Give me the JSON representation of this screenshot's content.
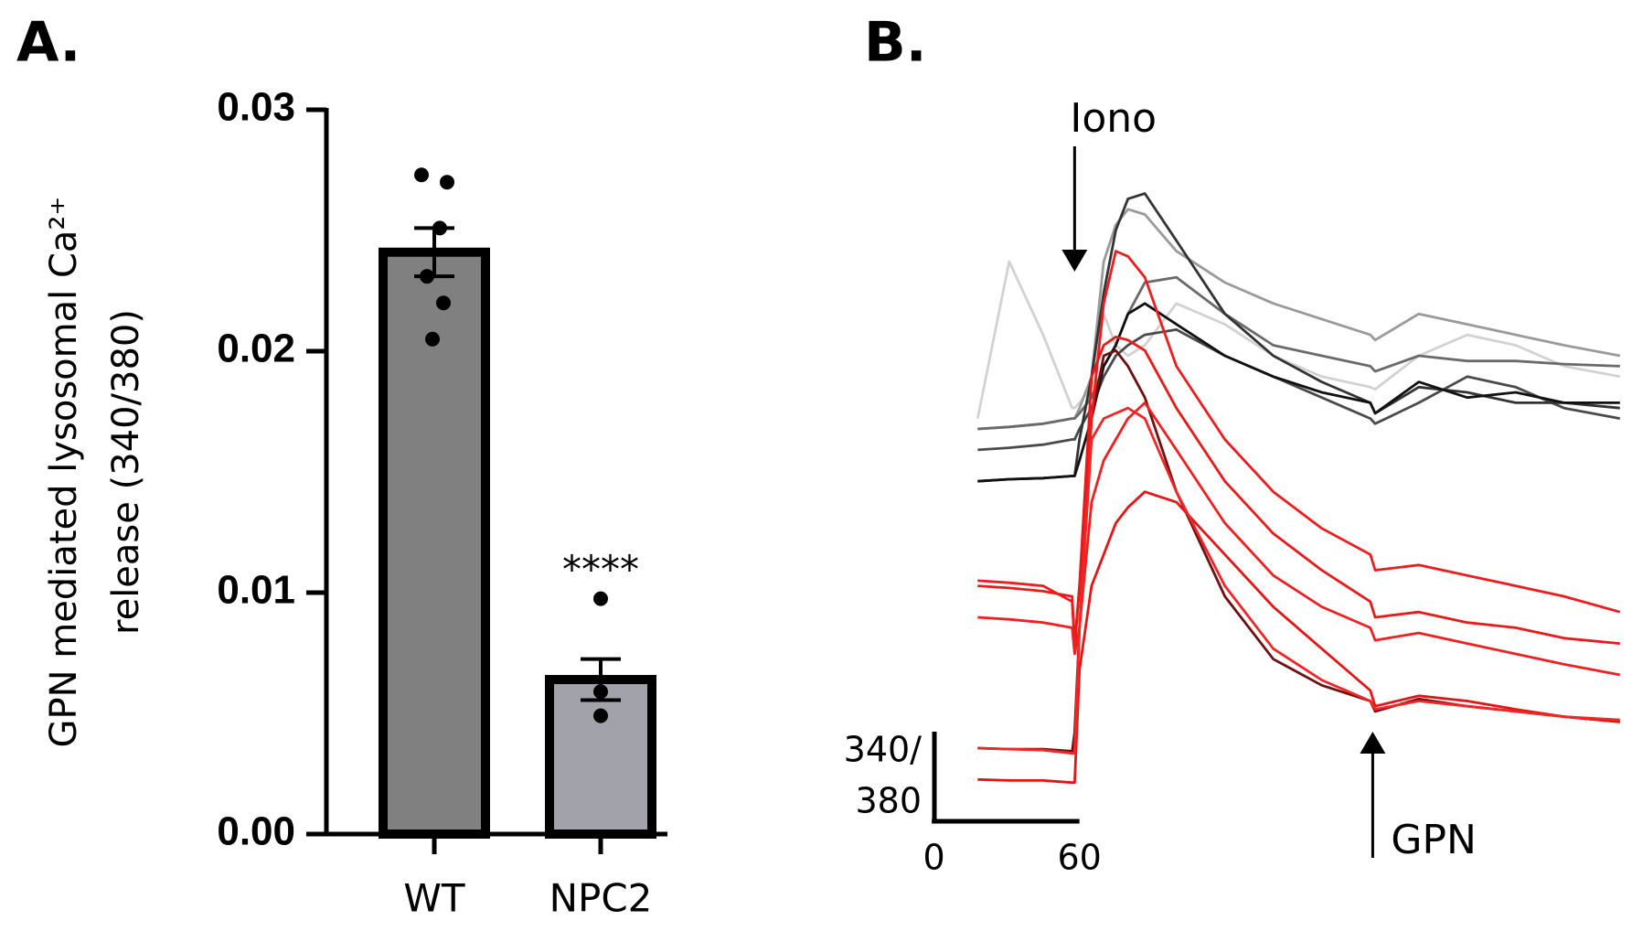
{
  "chart_data": [
    {
      "type": "bar",
      "panel_label": "A.",
      "ylabel": [
        "GPN mediated lysosomal Ca²⁺",
        "release (340/380)"
      ],
      "categories": [
        "WT",
        "NPC2"
      ],
      "values": [
        0.0241,
        0.0064
      ],
      "errors": [
        0.001,
        0.00085
      ],
      "colors": [
        "#808080",
        "#a2a2aa"
      ],
      "points": [
        [
          0.0273,
          0.027,
          0.0251,
          0.0231,
          0.022,
          0.0205
        ],
        [
          0.00975,
          0.0059,
          0.0049
        ]
      ],
      "annotations": [
        null,
        "****"
      ],
      "ylim": [
        0,
        0.03
      ],
      "yticks": [
        {
          "value": 0,
          "label": "0.00"
        },
        0.01,
        0.02,
        0.03
      ]
    },
    {
      "type": "line",
      "panel_label": "B.",
      "x": [
        18,
        31,
        45,
        57,
        58,
        60,
        65,
        70,
        75,
        80,
        87,
        100,
        120,
        140,
        160,
        180,
        182,
        200,
        220,
        240,
        260,
        283
      ],
      "xlim": [
        0,
        283
      ],
      "ylim": [
        0,
        7
      ],
      "xticks": [
        0,
        60
      ],
      "scalebar_label": [
        "340/",
        "380"
      ],
      "annotations": [
        {
          "text": "Iono",
          "x": 58,
          "direction": "down"
        },
        {
          "text": "GPN",
          "x": 181,
          "direction": "up"
        }
      ],
      "series": [
        {
          "color": "#d2d2d2",
          "values": [
            4,
            5.5,
            4.8,
            4.1,
            4.1,
            4.15,
            4.3,
            5,
            4.7,
            4.6,
            4.7,
            5.1,
            4.9,
            4.6,
            4.4,
            4.3,
            4.28,
            4.6,
            4.8,
            4.7,
            4.5,
            4.4
          ]
        },
        {
          "color": "#9a9a9a",
          "values": [
            3.9,
            3.92,
            3.95,
            4,
            4,
            4.1,
            4.4,
            5.5,
            5.85,
            6,
            5.95,
            5.6,
            5.3,
            5.1,
            4.95,
            4.8,
            4.75,
            5,
            4.9,
            4.8,
            4.7,
            4.6
          ]
        },
        {
          "color": "#6a6a6a",
          "values": [
            3.9,
            3.92,
            3.95,
            4,
            4,
            4.05,
            4.2,
            4.5,
            4.7,
            5,
            5.3,
            5.35,
            5,
            4.7,
            4.6,
            4.5,
            4.45,
            4.6,
            4.55,
            4.55,
            4.52,
            4.5
          ]
        },
        {
          "color": "#4a4a4a",
          "values": [
            3.7,
            3.72,
            3.75,
            3.8,
            3.8,
            3.9,
            4.1,
            4.4,
            4.6,
            4.7,
            4.8,
            4.85,
            4.6,
            4.4,
            4.2,
            4,
            3.95,
            4.15,
            4.4,
            4.3,
            4.1,
            4
          ]
        },
        {
          "color": "#333333",
          "values": [
            3.4,
            3.42,
            3.43,
            3.45,
            3.45,
            3.8,
            4.4,
            5.2,
            5.8,
            6.1,
            6.15,
            5.7,
            5,
            4.6,
            4.35,
            4.15,
            4.05,
            4.3,
            4.25,
            4.15,
            4.15,
            4.1
          ]
        },
        {
          "color": "#111111",
          "values": [
            3.4,
            3.42,
            3.43,
            3.45,
            3.45,
            3.6,
            4,
            4.5,
            4.7,
            5,
            5.1,
            4.9,
            4.6,
            4.4,
            4.25,
            4.15,
            4.05,
            4.35,
            4.2,
            4.25,
            4.15,
            4.15
          ]
        },
        {
          "color": "#6e1010",
          "values": [
            0.85,
            0.84,
            0.84,
            0.82,
            1,
            2,
            4,
            4.6,
            4.65,
            4.5,
            4.2,
            3.3,
            2.3,
            1.7,
            1.45,
            1.3,
            1.2,
            1.32,
            1.25,
            1.2,
            1.15,
            1.1
          ]
        },
        {
          "color": "#ee1c1c",
          "values": [
            2.45,
            2.43,
            2.4,
            2.25,
            1.85,
            2.4,
            4,
            5.1,
            5.6,
            5.55,
            5.35,
            4.5,
            3.8,
            3.3,
            2.95,
            2.7,
            2.55,
            2.6,
            2.5,
            2.4,
            2.3,
            2.15
          ]
        },
        {
          "color": "#e81a1a",
          "values": [
            2.4,
            2.38,
            2.35,
            2.3,
            1.8,
            2.4,
            4.4,
            4.7,
            4.78,
            4.75,
            4.65,
            4.1,
            3.4,
            2.9,
            2.55,
            2.25,
            2.1,
            2.15,
            2.05,
            2,
            1.9,
            1.85
          ]
        },
        {
          "color": "#f02020",
          "values": [
            2.1,
            2.08,
            2.05,
            2,
            1.75,
            2,
            3.2,
            3.6,
            3.8,
            4,
            4.15,
            3.7,
            3,
            2.5,
            2.2,
            2,
            1.88,
            1.95,
            1.85,
            1.75,
            1.65,
            1.55
          ]
        },
        {
          "color": "#e51515",
          "values": [
            0.55,
            0.54,
            0.54,
            0.52,
            0.52,
            1.6,
            2.4,
            2.7,
            3,
            3.15,
            3.3,
            3.2,
            2.7,
            2.2,
            1.8,
            1.4,
            1.25,
            1.35,
            1.3,
            1.22,
            1.15,
            1.1
          ]
        },
        {
          "color": "#f22626",
          "values": [
            0.85,
            0.84,
            0.83,
            0.8,
            0.8,
            2,
            3.8,
            4,
            4.05,
            4.1,
            4,
            3.3,
            2.4,
            1.8,
            1.5,
            1.3,
            1.22,
            1.3,
            1.25,
            1.2,
            1.15,
            1.12
          ]
        }
      ]
    }
  ]
}
